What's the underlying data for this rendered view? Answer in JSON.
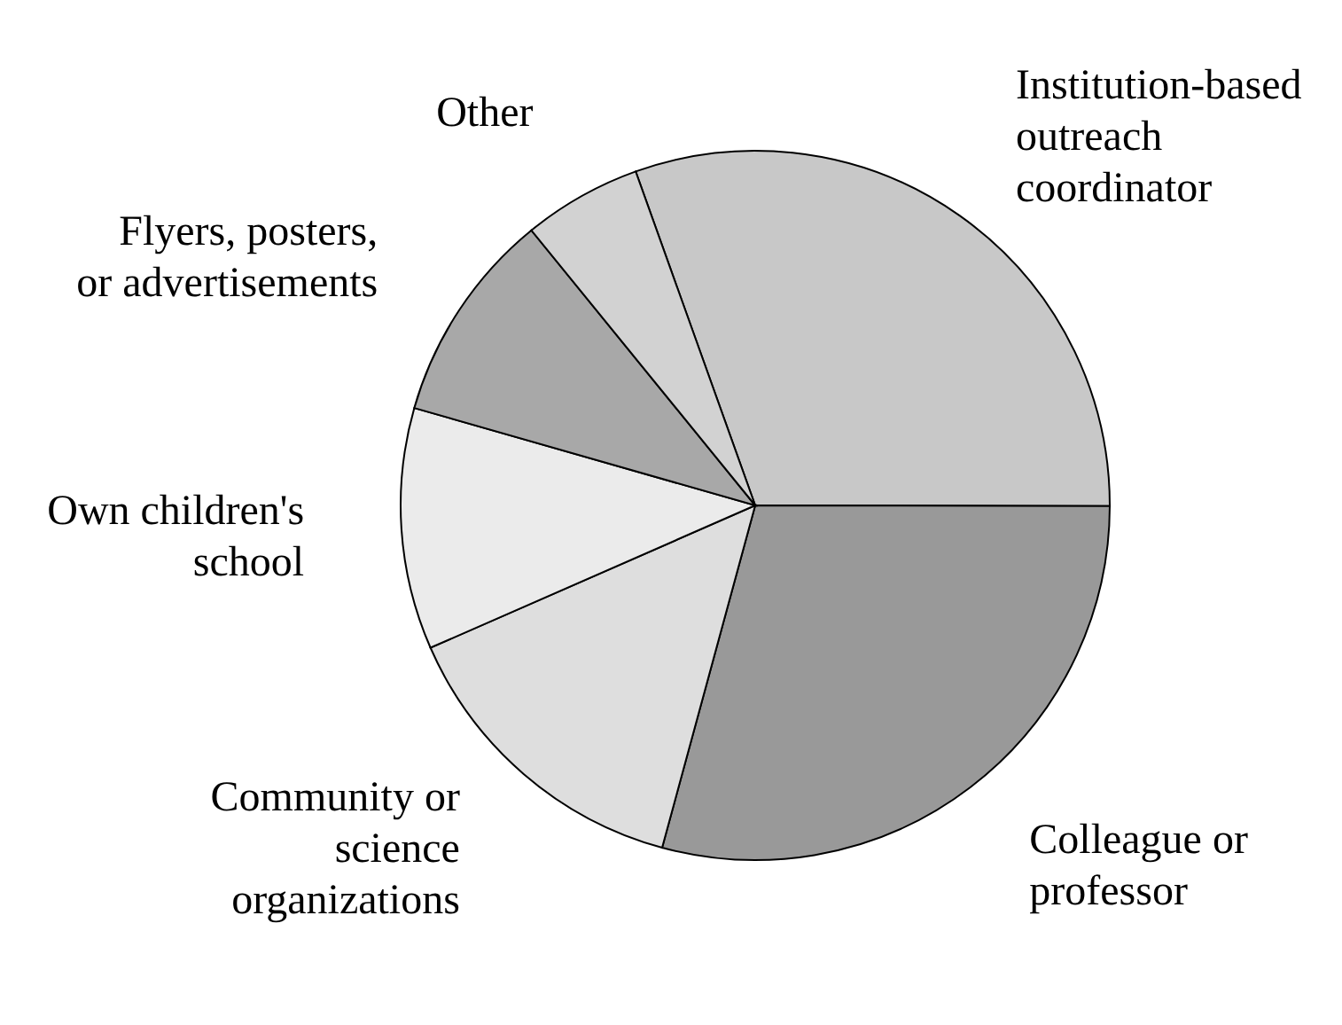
{
  "chart_data": {
    "type": "pie",
    "categories": [
      "Institution-based outreach coordinator",
      "Colleague or professor",
      "Community or science organizations",
      "Own children's school",
      "Flyers, posters, or advertisements",
      "Other"
    ],
    "values": [
      30.5,
      29.2,
      14.2,
      11,
      9.7,
      5.4
    ],
    "colors": [
      "#c8c8c8",
      "#999999",
      "#dedede",
      "#ebebeb",
      "#a8a8a8",
      "#d2d2d2"
    ]
  }
}
